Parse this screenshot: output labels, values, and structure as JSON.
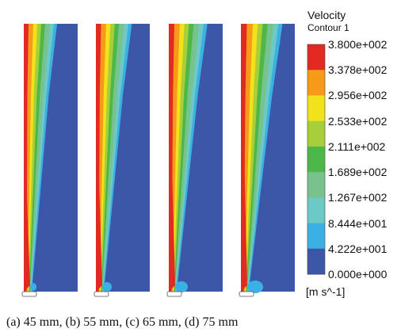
{
  "figure": {
    "panels": [
      "(a) 45 mm",
      "(b) 55 mm",
      "(c) 65 mm",
      "(d) 75 mm"
    ],
    "caption": "(a) 45 mm, (b) 55 mm, (c) 65 mm, (d) 75 mm"
  },
  "legend": {
    "title": "Velocity",
    "subtitle": "Contour 1",
    "units": "[m s^-1]",
    "ticks": [
      "3.800e+002",
      "3.378e+002",
      "2.956e+002",
      "2.533e+002",
      "2.111e+002",
      "1.689e+002",
      "1.267e+002",
      "8.444e+001",
      "4.222e+001",
      "0.000e+000"
    ],
    "colors": [
      "#e02a22",
      "#f79a1a",
      "#f2e21a",
      "#a8cf3a",
      "#4db848",
      "#78c28e",
      "#6cc9c6",
      "#3bb0e5",
      "#3d57a8"
    ]
  }
}
